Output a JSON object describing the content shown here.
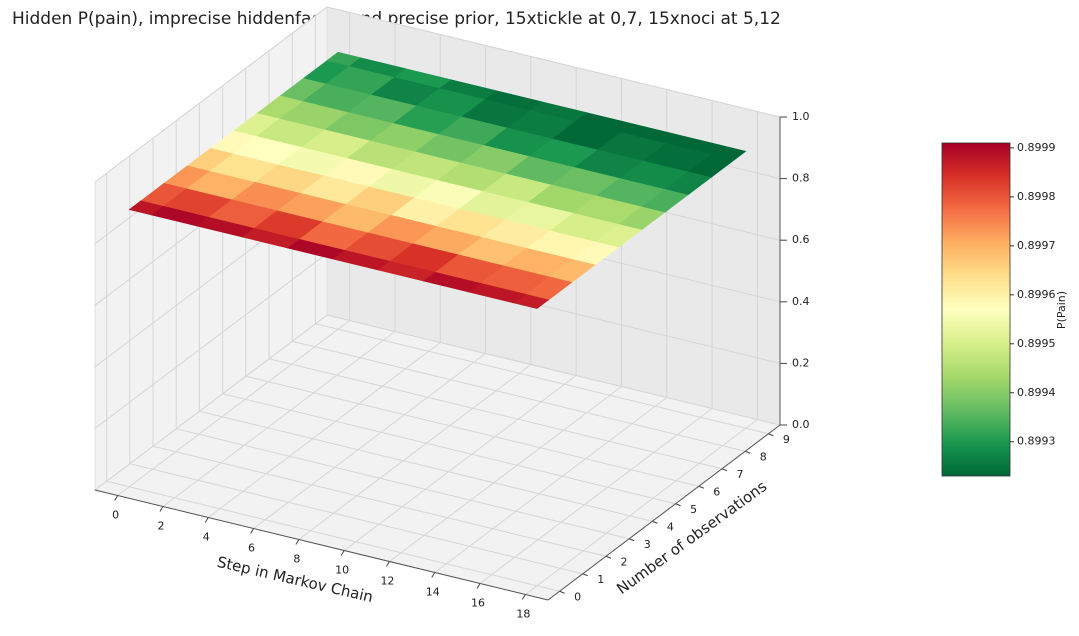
{
  "chart_data": {
    "type": "surface3d",
    "title": "Hidden P(pain), imprecise hiddenfactor and precise prior, 15xtickle at 0,7, 15xnoci at 5,12",
    "xlabel": "Step in Markov Chain",
    "ylabel": "Number of observations",
    "x": [
      0,
      2,
      4,
      6,
      8,
      10,
      12,
      14,
      16,
      18
    ],
    "y": [
      0,
      1,
      2,
      3,
      4,
      5,
      6,
      7,
      8,
      9
    ],
    "z": [
      [
        0.89988,
        0.8999,
        0.89989,
        0.89987,
        0.8999,
        0.89988,
        0.89986,
        0.89989,
        0.89988,
        0.89987
      ],
      [
        0.8998,
        0.89982,
        0.89979,
        0.89983,
        0.89978,
        0.89981,
        0.89984,
        0.8998,
        0.89979,
        0.89978
      ],
      [
        0.89973,
        0.8997,
        0.89974,
        0.89972,
        0.89969,
        0.89973,
        0.89971,
        0.89968,
        0.8997,
        0.89969
      ],
      [
        0.89966,
        0.89963,
        0.89965,
        0.89962,
        0.89966,
        0.8996,
        0.89963,
        0.89961,
        0.89959,
        0.89958
      ],
      [
        0.89958,
        0.89957,
        0.89955,
        0.89958,
        0.89954,
        0.89956,
        0.89952,
        0.89953,
        0.8995,
        0.89951
      ],
      [
        0.89951,
        0.89948,
        0.8995,
        0.89946,
        0.89947,
        0.89945,
        0.89948,
        0.89943,
        0.89944,
        0.89942
      ],
      [
        0.89944,
        0.89942,
        0.89939,
        0.89941,
        0.89938,
        0.8994,
        0.89936,
        0.89937,
        0.89935,
        0.89934
      ],
      [
        0.89937,
        0.89934,
        0.89935,
        0.89931,
        0.89933,
        0.89929,
        0.8993,
        0.89927,
        0.89928,
        0.89927
      ],
      [
        0.8993,
        0.89932,
        0.89927,
        0.89929,
        0.89925,
        0.89926,
        0.89923,
        0.89925,
        0.89924,
        0.89923
      ],
      [
        0.89932,
        0.89928,
        0.8993,
        0.89926,
        0.89924,
        0.89925,
        0.89922,
        0.89923,
        0.89923,
        0.89922
      ]
    ],
    "xlim": [
      -1,
      19
    ],
    "ylim": [
      -0.5,
      9.5
    ],
    "zlim": [
      0,
      1
    ],
    "xticks": [
      0,
      2,
      4,
      6,
      8,
      10,
      12,
      14,
      16,
      18
    ],
    "yticks": [
      0,
      1,
      2,
      3,
      4,
      5,
      6,
      7,
      8,
      9
    ],
    "zticks": [
      {
        "value": 0,
        "label": "0.0"
      },
      {
        "value": 0.2,
        "label": "0.2"
      },
      {
        "value": 0.4,
        "label": "0.4"
      },
      {
        "value": 0.6,
        "label": "0.6"
      },
      {
        "value": 0.8,
        "label": "0.8"
      },
      {
        "value": 1,
        "label": "1.0"
      }
    ],
    "grid": true,
    "cmap": [
      "#006837",
      "#1a9850",
      "#66bd63",
      "#a6d96a",
      "#d9ef8b",
      "#ffffbf",
      "#fee08b",
      "#fdae61",
      "#f46d43",
      "#d73027",
      "#a50026"
    ],
    "colorbar": {
      "label": "P(Pain)",
      "clim": [
        0.89923,
        0.89991
      ],
      "ticks": [
        0.8993,
        0.8994,
        0.8995,
        0.8996,
        0.8997,
        0.8998,
        0.8999
      ]
    }
  }
}
